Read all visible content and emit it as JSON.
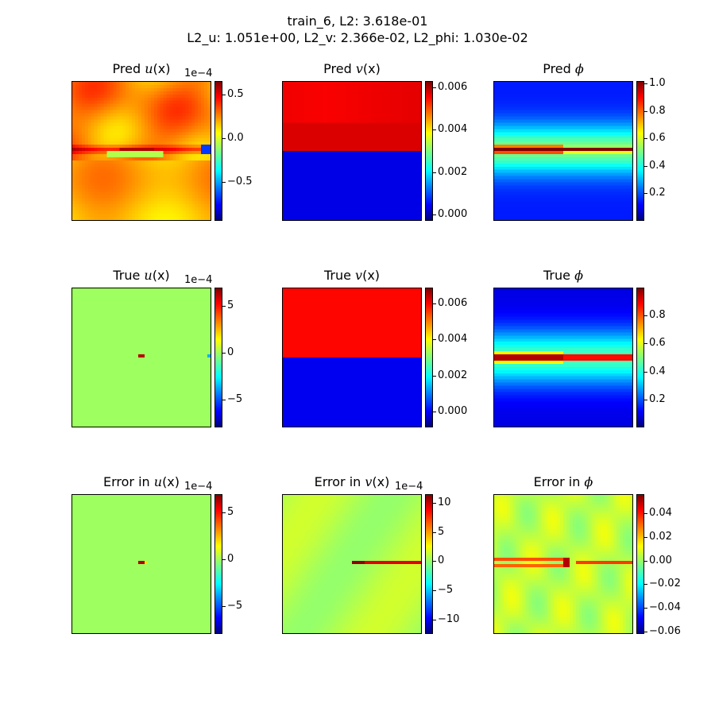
{
  "figure": {
    "title_line1": "train_6, L2: 3.618e-01",
    "title_line2": "L2_u: 1.051e+00, L2_v: 2.366e-02, L2_phi: 1.030e-02"
  },
  "colormap": "jet",
  "chart_data": [
    {
      "type": "heatmap",
      "title_prefix": "Pred ",
      "title_var": "u",
      "title_suffix": "(x)",
      "field": "pred_u",
      "colorbar": {
        "min": -0.95,
        "max": 0.65,
        "ticks": [
          {
            "v": 0.5,
            "label": "0.5"
          },
          {
            "v": 0.0,
            "label": "0.0"
          },
          {
            "v": -0.5,
            "label": "−0.5"
          }
        ],
        "offset": "1e−4"
      }
    },
    {
      "type": "heatmap",
      "title_prefix": "Pred ",
      "title_var": "v",
      "title_suffix": "(x)",
      "field": "pred_v",
      "colorbar": {
        "min": -0.0003,
        "max": 0.0063,
        "ticks": [
          {
            "v": 0.006,
            "label": "0.006"
          },
          {
            "v": 0.004,
            "label": "0.004"
          },
          {
            "v": 0.002,
            "label": "0.002"
          },
          {
            "v": 0.0,
            "label": "0.000"
          }
        ],
        "offset": ""
      }
    },
    {
      "type": "heatmap",
      "title_prefix": "Pred ",
      "title_var": "ϕ",
      "title_suffix": "",
      "field": "pred_phi",
      "colorbar": {
        "min": 0.0,
        "max": 1.02,
        "ticks": [
          {
            "v": 1.0,
            "label": "1.0"
          },
          {
            "v": 0.8,
            "label": "0.8"
          },
          {
            "v": 0.6,
            "label": "0.6"
          },
          {
            "v": 0.4,
            "label": "0.4"
          },
          {
            "v": 0.2,
            "label": "0.2"
          }
        ],
        "offset": ""
      }
    },
    {
      "type": "heatmap",
      "title_prefix": "True ",
      "title_var": "u",
      "title_suffix": "(x)",
      "field": "true_u",
      "colorbar": {
        "min": -8.0,
        "max": 7.0,
        "ticks": [
          {
            "v": 5,
            "label": "5"
          },
          {
            "v": 0,
            "label": "0"
          },
          {
            "v": -5,
            "label": "−5"
          }
        ],
        "offset": "1e−4"
      }
    },
    {
      "type": "heatmap",
      "title_prefix": "True ",
      "title_var": "v",
      "title_suffix": "(x)",
      "field": "true_v",
      "colorbar": {
        "min": -0.0009,
        "max": 0.0069,
        "ticks": [
          {
            "v": 0.006,
            "label": "0.006"
          },
          {
            "v": 0.004,
            "label": "0.004"
          },
          {
            "v": 0.002,
            "label": "0.002"
          },
          {
            "v": 0.0,
            "label": "0.000"
          }
        ],
        "offset": ""
      }
    },
    {
      "type": "heatmap",
      "title_prefix": "True ",
      "title_var": "ϕ",
      "title_suffix": "",
      "field": "true_phi",
      "colorbar": {
        "min": 0.0,
        "max": 1.0,
        "ticks": [
          {
            "v": 0.8,
            "label": "0.8"
          },
          {
            "v": 0.6,
            "label": "0.6"
          },
          {
            "v": 0.4,
            "label": "0.4"
          },
          {
            "v": 0.2,
            "label": "0.2"
          }
        ],
        "offset": ""
      }
    },
    {
      "type": "heatmap",
      "title_prefix": "Error in ",
      "title_var": "u",
      "title_suffix": "(x)",
      "field": "err_u",
      "colorbar": {
        "min": -8.0,
        "max": 7.0,
        "ticks": [
          {
            "v": 5,
            "label": "5"
          },
          {
            "v": 0,
            "label": "0"
          },
          {
            "v": -5,
            "label": "−5"
          }
        ],
        "offset": "1e−4"
      }
    },
    {
      "type": "heatmap",
      "title_prefix": "Error in ",
      "title_var": "v",
      "title_suffix": "(x)",
      "field": "err_v",
      "colorbar": {
        "min": -12.5,
        "max": 11.5,
        "ticks": [
          {
            "v": 10,
            "label": "10"
          },
          {
            "v": 5,
            "label": "5"
          },
          {
            "v": 0,
            "label": "0"
          },
          {
            "v": -5,
            "label": "−5"
          },
          {
            "v": -10,
            "label": "−10"
          }
        ],
        "offset": "1e−4"
      }
    },
    {
      "type": "heatmap",
      "title_prefix": "Error in ",
      "title_var": "ϕ",
      "title_suffix": "",
      "field": "err_phi",
      "colorbar": {
        "min": -0.062,
        "max": 0.056,
        "ticks": [
          {
            "v": 0.04,
            "label": "0.04"
          },
          {
            "v": 0.02,
            "label": "0.02"
          },
          {
            "v": 0.0,
            "label": "0.00"
          },
          {
            "v": -0.02,
            "label": "−0.02"
          },
          {
            "v": -0.04,
            "label": "−0.04"
          },
          {
            "v": -0.06,
            "label": "−0.06"
          }
        ],
        "offset": ""
      }
    }
  ]
}
